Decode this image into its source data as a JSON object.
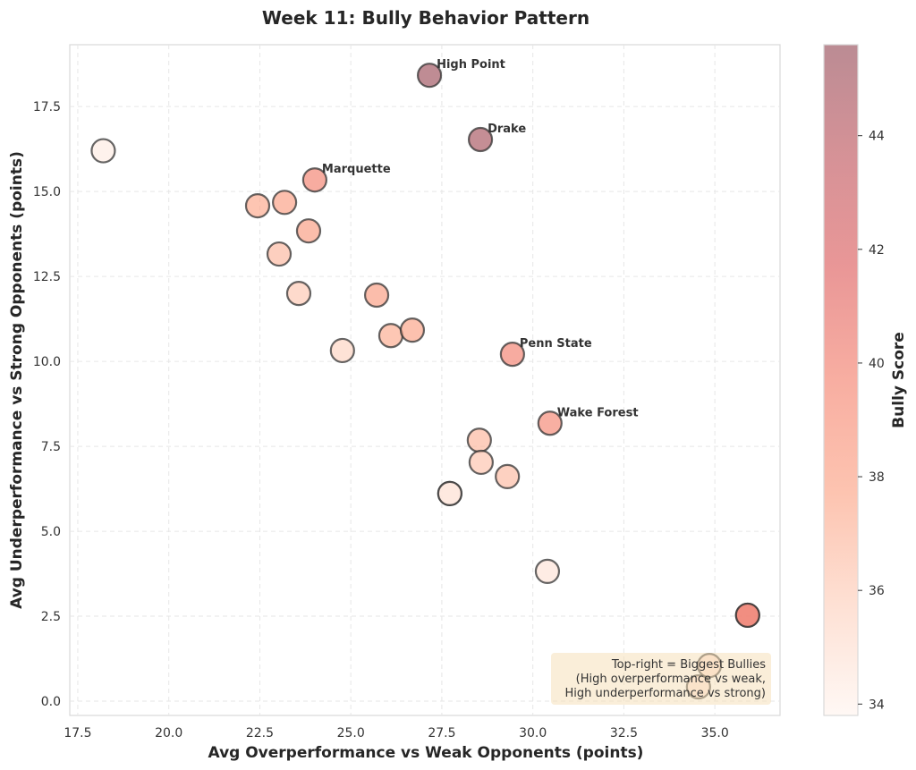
{
  "chart_data": {
    "type": "scatter",
    "title": "Week 11: Bully Behavior Pattern",
    "xlabel": "Avg Overperformance vs Weak Opponents (points)",
    "ylabel": "Avg Underperformance vs Strong Opponents (points)",
    "xlim": [
      17.28,
      36.79
    ],
    "ylim": [
      -0.42,
      19.32
    ],
    "xticks": [
      17.5,
      20.0,
      22.5,
      25.0,
      27.5,
      30.0,
      32.5,
      35.0
    ],
    "xtick_labels": [
      "17.5",
      "20.0",
      "22.5",
      "25.0",
      "27.5",
      "30.0",
      "32.5",
      "35.0"
    ],
    "yticks": [
      0.0,
      2.5,
      5.0,
      7.5,
      10.0,
      12.5,
      15.0,
      17.5
    ],
    "ytick_labels": [
      "0.0",
      "2.5",
      "5.0",
      "7.5",
      "10.0",
      "12.5",
      "15.0",
      "17.5"
    ],
    "grid": true,
    "colorbar": {
      "label": "Bully Score",
      "range": [
        33.8,
        45.6
      ],
      "ticks": [
        34,
        36,
        38,
        40,
        42,
        44
      ],
      "tick_labels": [
        "34",
        "36",
        "38",
        "40",
        "42",
        "44"
      ],
      "colormap": [
        "#fff5f0",
        "#fdd3c1",
        "#fcaa8e",
        "#f58b79",
        "#e06a6a",
        "#c4636a",
        "#9e5a66"
      ],
      "alpha": 0.7,
      "placement": "right"
    },
    "points": [
      {
        "x": 27.16,
        "y": 18.42,
        "score": 45.3,
        "label": "High Point"
      },
      {
        "x": 28.56,
        "y": 16.53,
        "score": 44.8,
        "label": "Drake"
      },
      {
        "x": 24.01,
        "y": 15.34,
        "score": 39.8,
        "label": "Marquette"
      },
      {
        "x": 29.44,
        "y": 10.21,
        "score": 39.9,
        "label": "Penn State"
      },
      {
        "x": 30.47,
        "y": 8.18,
        "score": 39.6,
        "label": "Wake Forest"
      },
      {
        "x": 18.2,
        "y": 16.2,
        "score": 34.3,
        "label": ""
      },
      {
        "x": 22.44,
        "y": 14.58,
        "score": 37.6,
        "label": ""
      },
      {
        "x": 23.18,
        "y": 14.68,
        "score": 38.1,
        "label": ""
      },
      {
        "x": 23.84,
        "y": 13.84,
        "score": 38.3,
        "label": ""
      },
      {
        "x": 23.03,
        "y": 13.16,
        "score": 36.9,
        "label": ""
      },
      {
        "x": 23.57,
        "y": 12.0,
        "score": 36.2,
        "label": ""
      },
      {
        "x": 25.71,
        "y": 11.95,
        "score": 38.3,
        "label": ""
      },
      {
        "x": 26.1,
        "y": 10.76,
        "score": 37.5,
        "label": ""
      },
      {
        "x": 26.69,
        "y": 10.92,
        "score": 38.0,
        "label": ""
      },
      {
        "x": 24.77,
        "y": 10.32,
        "score": 35.6,
        "label": ""
      },
      {
        "x": 28.53,
        "y": 7.68,
        "score": 37.0,
        "label": ""
      },
      {
        "x": 28.58,
        "y": 7.03,
        "score": 36.4,
        "label": ""
      },
      {
        "x": 29.3,
        "y": 6.61,
        "score": 36.8,
        "label": ""
      },
      {
        "x": 27.72,
        "y": 6.11,
        "score": 34.6,
        "label": ""
      },
      {
        "x": 27.72,
        "y": 6.11,
        "score": 34.6,
        "label": ""
      },
      {
        "x": 30.4,
        "y": 3.82,
        "score": 34.8,
        "label": ""
      },
      {
        "x": 35.9,
        "y": 2.53,
        "score": 40.2,
        "label": ""
      },
      {
        "x": 35.9,
        "y": 2.53,
        "score": 40.2,
        "label": ""
      },
      {
        "x": 34.85,
        "y": 1.05,
        "score": 35.4,
        "label": ""
      },
      {
        "x": 34.55,
        "y": 0.42,
        "score": 35.0,
        "label": ""
      }
    ],
    "annotation": {
      "lines": [
        "Top-right = Biggest Bullies",
        "(High overperformance vs weak,",
        "High underperformance vs strong)"
      ],
      "placement": "bottom-right",
      "background": "#f5deb3"
    }
  }
}
